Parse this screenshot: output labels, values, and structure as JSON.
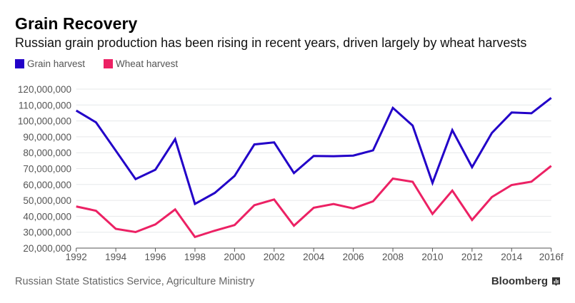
{
  "header": {
    "title": "Grain Recovery",
    "subtitle": "Russian grain production has been rising in recent years, driven largely by wheat harvests"
  },
  "legend": [
    {
      "label": "Grain harvest",
      "color": "#2200c8"
    },
    {
      "label": "Wheat harvest",
      "color": "#ec2164"
    }
  ],
  "footer": {
    "source": "Russian State Statistics Service, Agriculture Ministry",
    "brand": "Bloomberg",
    "brand_icon": "bloomberg-chart-icon"
  },
  "chart_data": {
    "type": "line",
    "title": "Grain Recovery",
    "subtitle": "Russian grain production has been rising in recent years, driven largely by wheat harvests",
    "xlabel": "",
    "ylabel": "",
    "x": [
      "1992",
      "1993",
      "1994",
      "1995",
      "1996",
      "1997",
      "1998",
      "1999",
      "2000",
      "2001",
      "2002",
      "2003",
      "2004",
      "2005",
      "2006",
      "2007",
      "2008",
      "2009",
      "2010",
      "2011",
      "2012",
      "2013",
      "2014",
      "2015",
      "2016f"
    ],
    "x_tick_labels": [
      "1992",
      "1994",
      "1996",
      "1998",
      "2000",
      "2002",
      "2004",
      "2006",
      "2008",
      "2010",
      "2012",
      "2014",
      "2016f"
    ],
    "y_tick_labels": [
      "20,000,000",
      "30,000,000",
      "40,000,000",
      "50,000,000",
      "60,000,000",
      "70,000,000",
      "80,000,000",
      "90,000,000",
      "100,000,000",
      "110,000,000",
      "120,000,000"
    ],
    "y_ticks": [
      20000000,
      30000000,
      40000000,
      50000000,
      60000000,
      70000000,
      80000000,
      90000000,
      100000000,
      110000000,
      120000000
    ],
    "ylim": [
      20000000,
      120000000
    ],
    "grid": true,
    "legend_position": "top-left",
    "series": [
      {
        "name": "Grain harvest",
        "color": "#2200c8",
        "values": [
          106500000,
          99100000,
          81300000,
          63400000,
          69300000,
          88500000,
          47800000,
          54700000,
          65400000,
          85200000,
          86500000,
          67200000,
          78000000,
          77800000,
          78200000,
          81500000,
          108200000,
          97100000,
          61000000,
          94200000,
          70900000,
          92400000,
          105300000,
          104800000,
          114500000
        ]
      },
      {
        "name": "Wheat harvest",
        "color": "#ec2164",
        "values": [
          46200000,
          43500000,
          32100000,
          30100000,
          34900000,
          44300000,
          27000000,
          31000000,
          34500000,
          47000000,
          50600000,
          34100000,
          45400000,
          47700000,
          45000000,
          49400000,
          63700000,
          61700000,
          41500000,
          56200000,
          37700000,
          52100000,
          59700000,
          61800000,
          71700000
        ]
      }
    ]
  }
}
